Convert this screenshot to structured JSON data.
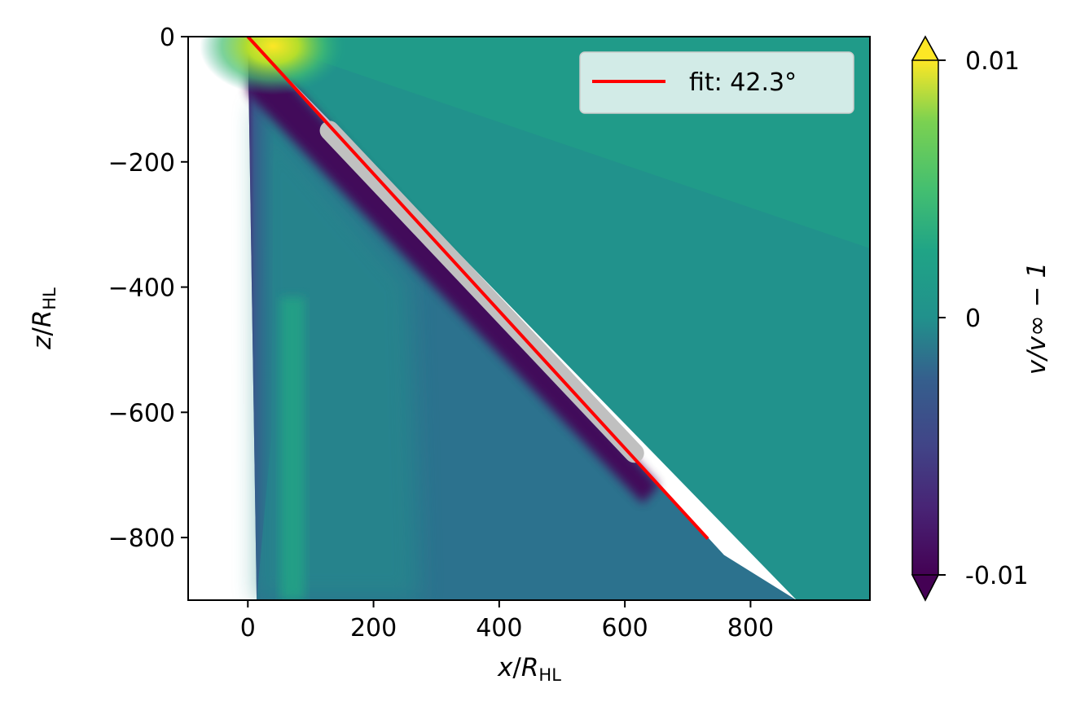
{
  "chart_data": {
    "type": "heatmap",
    "title": "",
    "xlabel": {
      "var": "x",
      "sep": "/",
      "sym": "R",
      "sub": "HL"
    },
    "ylabel": {
      "var": "z",
      "sep": "/",
      "sym": "R",
      "sub": "HL"
    },
    "xlim": [
      -95,
      990
    ],
    "ylim": [
      -900,
      0
    ],
    "xticks": [
      0,
      200,
      400,
      600,
      800
    ],
    "xtick_labels": [
      "0",
      "200",
      "400",
      "600",
      "800"
    ],
    "yticks": [
      0,
      -200,
      -400,
      -600,
      -800
    ],
    "ytick_labels": [
      "0",
      "−200",
      "−400",
      "−600",
      "−800"
    ],
    "colormap": "viridis",
    "color_range": [
      -0.01,
      0.01
    ],
    "colorbar": {
      "label": "v/v∞ − 1",
      "ticks": [
        0.01,
        0,
        -0.01
      ],
      "tick_labels": [
        "0.01",
        "0",
        "-0.01"
      ],
      "extend": "both"
    },
    "field_features": {
      "left_boundary_line": [
        [
          0,
          0
        ],
        [
          14,
          -900
        ]
      ],
      "background_value": 0.0,
      "stagnation_peak": {
        "x": 40,
        "z": -15,
        "value": 0.01
      },
      "shock_front_value": -0.01
    },
    "series": [
      {
        "name": "fit: 42.3°",
        "type": "line",
        "color": "#ff0000",
        "x": [
          0,
          732
        ],
        "y": [
          0,
          -802
        ]
      },
      {
        "type": "scatter",
        "color": "#c0c0c0",
        "x_range": [
          130,
          615
        ],
        "y_range": [
          -150,
          -665
        ]
      }
    ],
    "legend": {
      "position": "top-right",
      "entries": [
        "fit: 42.3°"
      ]
    },
    "grid": false
  }
}
